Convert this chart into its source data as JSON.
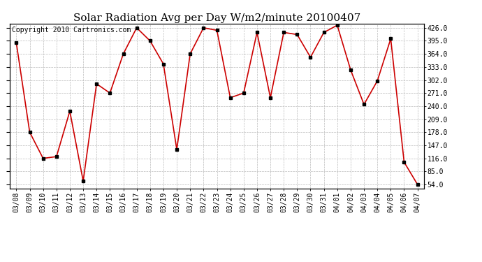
{
  "title": "Solar Radiation Avg per Day W/m2/minute 20100407",
  "copyright": "Copyright 2010 Cartronics.com",
  "x_labels": [
    "03/08",
    "03/09",
    "03/10",
    "03/11",
    "03/12",
    "03/13",
    "03/14",
    "03/15",
    "03/16",
    "03/17",
    "03/18",
    "03/19",
    "03/20",
    "03/21",
    "03/22",
    "03/23",
    "03/24",
    "03/25",
    "03/26",
    "03/27",
    "03/28",
    "03/29",
    "03/30",
    "03/31",
    "04/01",
    "04/02",
    "04/03",
    "04/04",
    "04/05",
    "04/06",
    "04/07"
  ],
  "values": [
    390,
    178,
    116,
    120,
    228,
    62,
    293,
    271,
    364,
    426,
    395,
    340,
    137,
    364,
    426,
    420,
    260,
    271,
    415,
    260,
    415,
    410,
    356,
    415,
    432,
    326,
    244,
    300,
    400,
    107,
    54
  ],
  "yticks": [
    54.0,
    85.0,
    116.0,
    147.0,
    178.0,
    209.0,
    240.0,
    271.0,
    302.0,
    333.0,
    364.0,
    395.0,
    426.0
  ],
  "ymin": 44.0,
  "ymax": 436.0,
  "line_color": "#cc0000",
  "marker_color": "#000000",
  "background_color": "#ffffff",
  "grid_color": "#bbbbbb",
  "title_fontsize": 11,
  "copyright_fontsize": 7,
  "tick_fontsize": 7,
  "ytick_fontsize": 7
}
